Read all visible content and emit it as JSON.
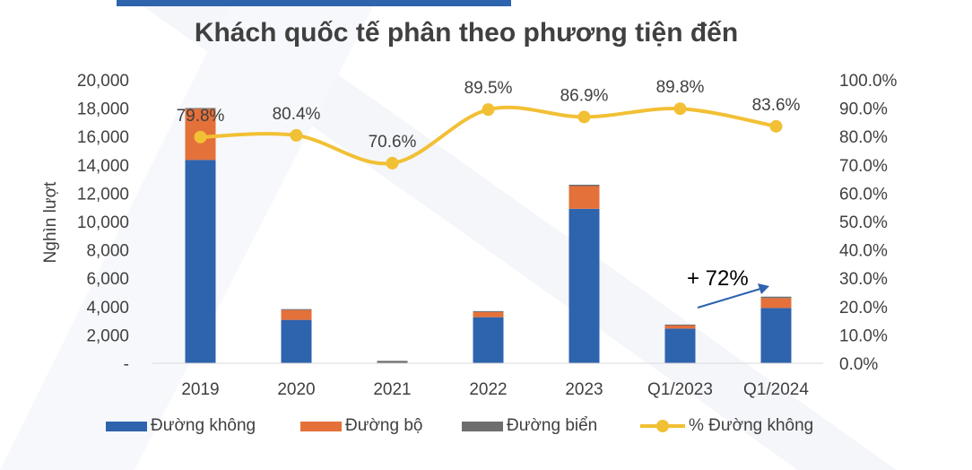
{
  "chart_data": {
    "type": "bar",
    "title": "Khách quốc tế phân theo phương tiện đến",
    "ylabel": "Nghìn lượt",
    "categories": [
      "2019",
      "2020",
      "2021",
      "2022",
      "2023",
      "Q1/2023",
      "Q1/2024"
    ],
    "ylim": [
      0,
      20000
    ],
    "y_ticks": [
      "-",
      "2,000",
      "4,000",
      "6,000",
      "8,000",
      "10,000",
      "12,000",
      "14,000",
      "16,000",
      "18,000",
      "20,000"
    ],
    "y2lim": [
      0,
      100
    ],
    "y2_ticks": [
      "0.0%",
      "10.0%",
      "20.0%",
      "30.0%",
      "40.0%",
      "50.0%",
      "60.0%",
      "70.0%",
      "80.0%",
      "90.0%",
      "100.0%"
    ],
    "series": [
      {
        "name": "Đường không",
        "type": "bar",
        "color": "#2E63AD",
        "values": [
          14350,
          3060,
          0,
          3250,
          10900,
          2450,
          3900
        ]
      },
      {
        "name": "Đường bộ",
        "type": "bar",
        "color": "#E4703A",
        "values": [
          3600,
          700,
          0,
          380,
          1600,
          250,
          700
        ]
      },
      {
        "name": "Đường biển",
        "type": "bar",
        "color": "#6E6E6E",
        "values": [
          60,
          60,
          170,
          50,
          100,
          30,
          100
        ]
      },
      {
        "name": "% Đường không",
        "type": "line",
        "axis": "secondary",
        "color": "#F2C035",
        "values": [
          79.8,
          80.4,
          70.6,
          89.5,
          86.9,
          89.8,
          83.6
        ],
        "labels": [
          "79.8%",
          "80.4%",
          "70.6%",
          "89.5%",
          "86.9%",
          "89.8%",
          "83.6%"
        ]
      }
    ],
    "annotation": {
      "text": "+ 72%",
      "arrow_color": "#2E63AD"
    },
    "legend_position": "bottom",
    "grid": false
  }
}
